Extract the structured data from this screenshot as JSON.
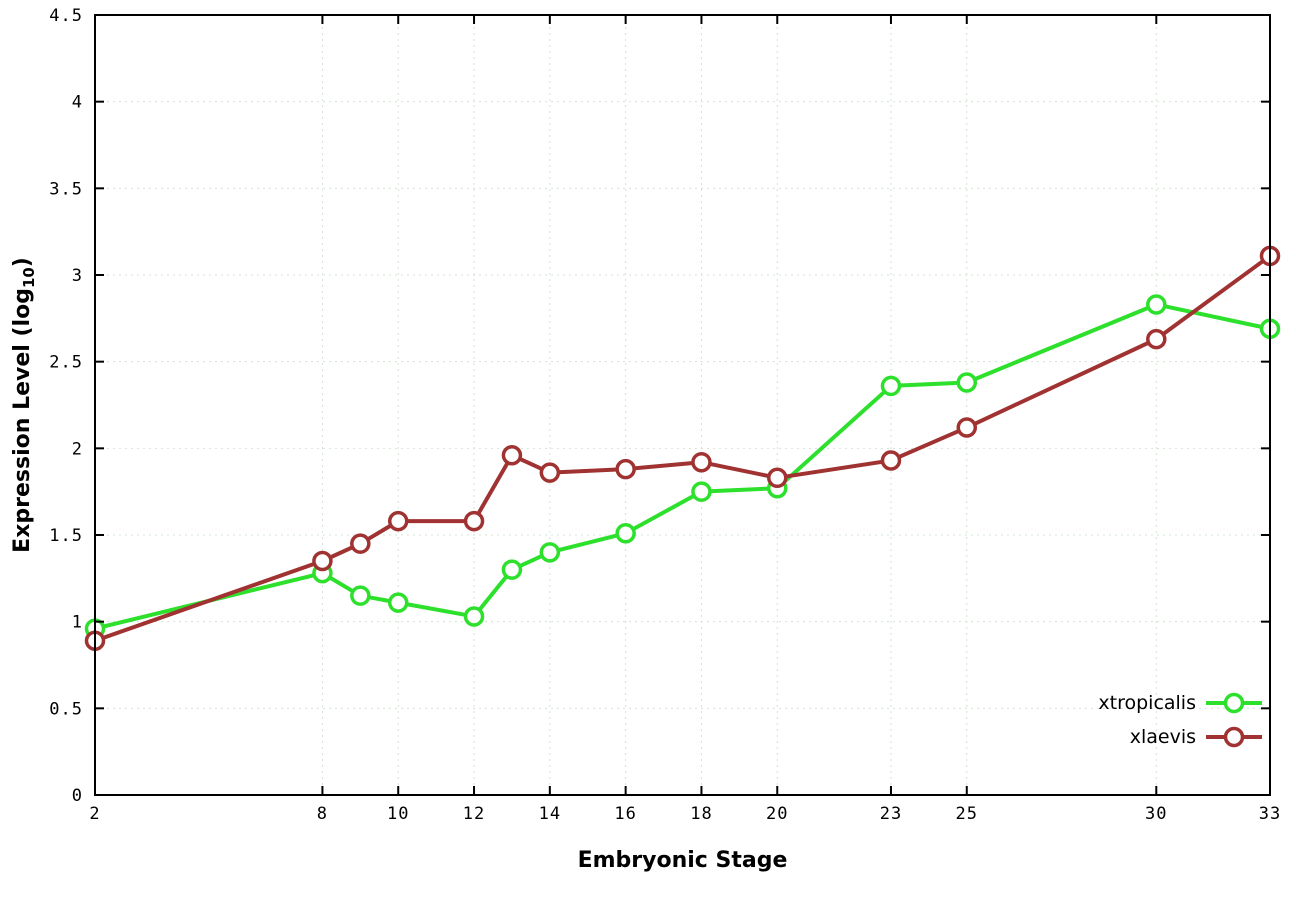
{
  "chart_data": {
    "type": "line",
    "title": "",
    "xlabel": "Embryonic Stage",
    "ylabel": "Expression Level (log10)",
    "ylabel_parts": {
      "prefix": "Expression Level (log",
      "sub": "10",
      "suffix": ")"
    },
    "xlim": [
      2,
      33
    ],
    "ylim": [
      0,
      4.5
    ],
    "x_ticks": [
      2,
      8,
      10,
      12,
      14,
      16,
      18,
      20,
      23,
      25,
      30,
      33
    ],
    "y_ticks": [
      0,
      0.5,
      1,
      1.5,
      2,
      2.5,
      3,
      3.5,
      4,
      4.5
    ],
    "grid": true,
    "legend_position": "bottom-right",
    "x": [
      2,
      8,
      9,
      10,
      12,
      13,
      14,
      16,
      18,
      20,
      23,
      25,
      30,
      33
    ],
    "series": [
      {
        "name": "xtropicalis",
        "color": "#2ce02c",
        "values": [
          0.96,
          1.28,
          1.15,
          1.11,
          1.03,
          1.3,
          1.4,
          1.51,
          1.75,
          1.77,
          2.36,
          2.38,
          2.83,
          2.69
        ]
      },
      {
        "name": "xlaevis",
        "color": "#a03232",
        "values": [
          0.89,
          1.35,
          1.45,
          1.58,
          1.58,
          1.96,
          1.86,
          1.88,
          1.92,
          1.83,
          1.93,
          2.12,
          2.63,
          3.11
        ]
      }
    ],
    "colors": {
      "axis": "#000000",
      "grid": "#d2e4d2",
      "marker_fill": "#ffffff"
    }
  }
}
